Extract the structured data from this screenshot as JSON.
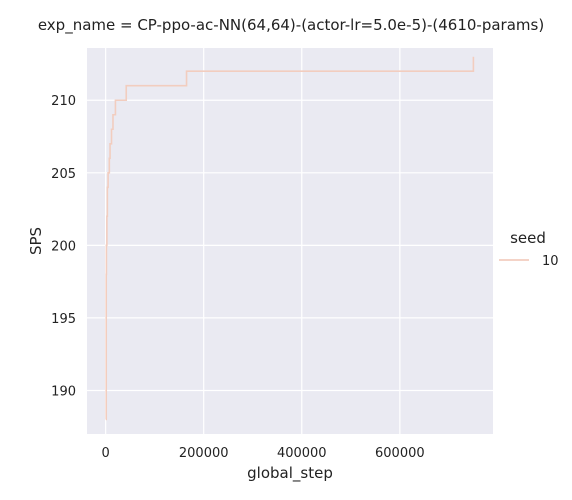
{
  "chart_data": {
    "type": "line",
    "title": "exp_name = CP-ppo-ac-NN(64,64)-(actor-lr=5.0e-5)-(4610-params)",
    "xlabel": "global_step",
    "ylabel": "SPS",
    "xlim": [
      -38000,
      790000
    ],
    "ylim": [
      187,
      213.6
    ],
    "xticks": [
      0,
      200000,
      400000,
      600000
    ],
    "xtick_labels": [
      "0",
      "200000",
      "400000",
      "600000"
    ],
    "yticks": [
      190,
      195,
      200,
      205,
      210
    ],
    "ytick_labels": [
      "190",
      "195",
      "200",
      "205",
      "210"
    ],
    "grid": true,
    "background": "#eaeaf2",
    "legend": {
      "title": "seed",
      "position": "right",
      "entries": [
        "10"
      ]
    },
    "series": [
      {
        "name": "10",
        "color": "#f2cdbf",
        "x": [
          500,
          1200,
          1600,
          2500,
          3500,
          5000,
          7500,
          9000,
          12000,
          15000,
          20000,
          42000,
          165000,
          750000
        ],
        "y": [
          188,
          198,
          200,
          202,
          204,
          205,
          206,
          207,
          208,
          209,
          210,
          211,
          212,
          213
        ],
        "step": true
      }
    ]
  }
}
